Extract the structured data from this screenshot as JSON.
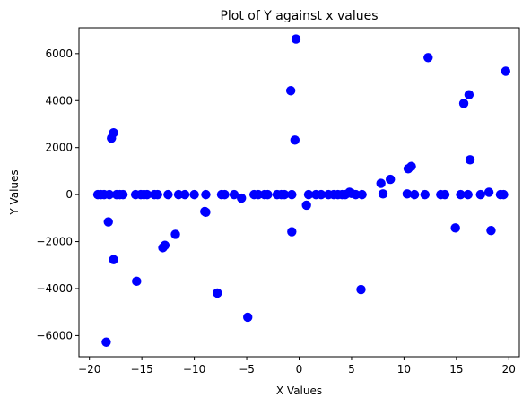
{
  "chart_data": {
    "type": "scatter",
    "title": "Plot of Y against x values",
    "xlabel": "X Values",
    "ylabel": "Y Values",
    "xlim": [
      -21.0,
      21.0
    ],
    "ylim": [
      -6900,
      7100
    ],
    "xticks": [
      -20,
      -15,
      -10,
      -5,
      0,
      5,
      10,
      15,
      20
    ],
    "yticks": [
      -6000,
      -4000,
      -2000,
      0,
      2000,
      4000,
      6000
    ],
    "grid": false,
    "marker_color": "#0000ff",
    "points": [
      {
        "x": -19.2,
        "y": 0
      },
      {
        "x": -18.9,
        "y": 0
      },
      {
        "x": -18.6,
        "y": 0
      },
      {
        "x": -18.4,
        "y": -6280
      },
      {
        "x": -18.2,
        "y": -1160
      },
      {
        "x": -18.1,
        "y": 0
      },
      {
        "x": -17.9,
        "y": 2400
      },
      {
        "x": -17.7,
        "y": 2630
      },
      {
        "x": -17.7,
        "y": -2770
      },
      {
        "x": -17.4,
        "y": 0
      },
      {
        "x": -17.1,
        "y": 0
      },
      {
        "x": -16.8,
        "y": 0
      },
      {
        "x": -15.6,
        "y": 0
      },
      {
        "x": -15.5,
        "y": -3690
      },
      {
        "x": -15.1,
        "y": 0
      },
      {
        "x": -14.8,
        "y": 0
      },
      {
        "x": -14.5,
        "y": 0
      },
      {
        "x": -13.8,
        "y": 0
      },
      {
        "x": -13.5,
        "y": 0
      },
      {
        "x": -13.0,
        "y": -2260
      },
      {
        "x": -12.8,
        "y": -2160
      },
      {
        "x": -12.5,
        "y": 0
      },
      {
        "x": -11.8,
        "y": -1690
      },
      {
        "x": -11.5,
        "y": 0
      },
      {
        "x": -10.9,
        "y": 0
      },
      {
        "x": -10.0,
        "y": 0
      },
      {
        "x": -9.0,
        "y": -720
      },
      {
        "x": -8.9,
        "y": -750
      },
      {
        "x": -8.9,
        "y": 0
      },
      {
        "x": -7.8,
        "y": -4190
      },
      {
        "x": -7.4,
        "y": 0
      },
      {
        "x": -7.1,
        "y": 0
      },
      {
        "x": -6.2,
        "y": 0
      },
      {
        "x": -5.5,
        "y": -150
      },
      {
        "x": -4.9,
        "y": -5220
      },
      {
        "x": -4.3,
        "y": 0
      },
      {
        "x": -3.9,
        "y": 0
      },
      {
        "x": -3.3,
        "y": 0
      },
      {
        "x": -3.0,
        "y": 0
      },
      {
        "x": -2.1,
        "y": 0
      },
      {
        "x": -1.7,
        "y": 0
      },
      {
        "x": -1.4,
        "y": 0
      },
      {
        "x": -0.8,
        "y": 4420
      },
      {
        "x": -0.7,
        "y": -1580
      },
      {
        "x": -0.7,
        "y": 0
      },
      {
        "x": -0.4,
        "y": 2320
      },
      {
        "x": -0.3,
        "y": 6620
      },
      {
        "x": 0.7,
        "y": -450
      },
      {
        "x": 0.9,
        "y": 0
      },
      {
        "x": 1.6,
        "y": 0
      },
      {
        "x": 2.1,
        "y": 0
      },
      {
        "x": 2.8,
        "y": 0
      },
      {
        "x": 3.3,
        "y": 0
      },
      {
        "x": 3.7,
        "y": 0
      },
      {
        "x": 4.1,
        "y": 0
      },
      {
        "x": 4.4,
        "y": 0
      },
      {
        "x": 4.8,
        "y": 100
      },
      {
        "x": 5.0,
        "y": 50
      },
      {
        "x": 5.4,
        "y": 0
      },
      {
        "x": 5.9,
        "y": -4040
      },
      {
        "x": 6.0,
        "y": 0
      },
      {
        "x": 7.8,
        "y": 480
      },
      {
        "x": 8.0,
        "y": 30
      },
      {
        "x": 8.7,
        "y": 650
      },
      {
        "x": 10.3,
        "y": 30
      },
      {
        "x": 10.4,
        "y": 1100
      },
      {
        "x": 10.7,
        "y": 1200
      },
      {
        "x": 11.0,
        "y": 0
      },
      {
        "x": 12.0,
        "y": 0
      },
      {
        "x": 12.3,
        "y": 5830
      },
      {
        "x": 13.5,
        "y": 0
      },
      {
        "x": 13.9,
        "y": 0
      },
      {
        "x": 14.9,
        "y": -1420
      },
      {
        "x": 15.4,
        "y": 0
      },
      {
        "x": 15.7,
        "y": 3880
      },
      {
        "x": 16.1,
        "y": 0
      },
      {
        "x": 16.2,
        "y": 4250
      },
      {
        "x": 16.3,
        "y": 1480
      },
      {
        "x": 17.3,
        "y": 0
      },
      {
        "x": 18.1,
        "y": 100
      },
      {
        "x": 18.3,
        "y": -1530
      },
      {
        "x": 19.2,
        "y": 0
      },
      {
        "x": 19.5,
        "y": 0
      },
      {
        "x": 19.7,
        "y": 5250
      }
    ]
  }
}
